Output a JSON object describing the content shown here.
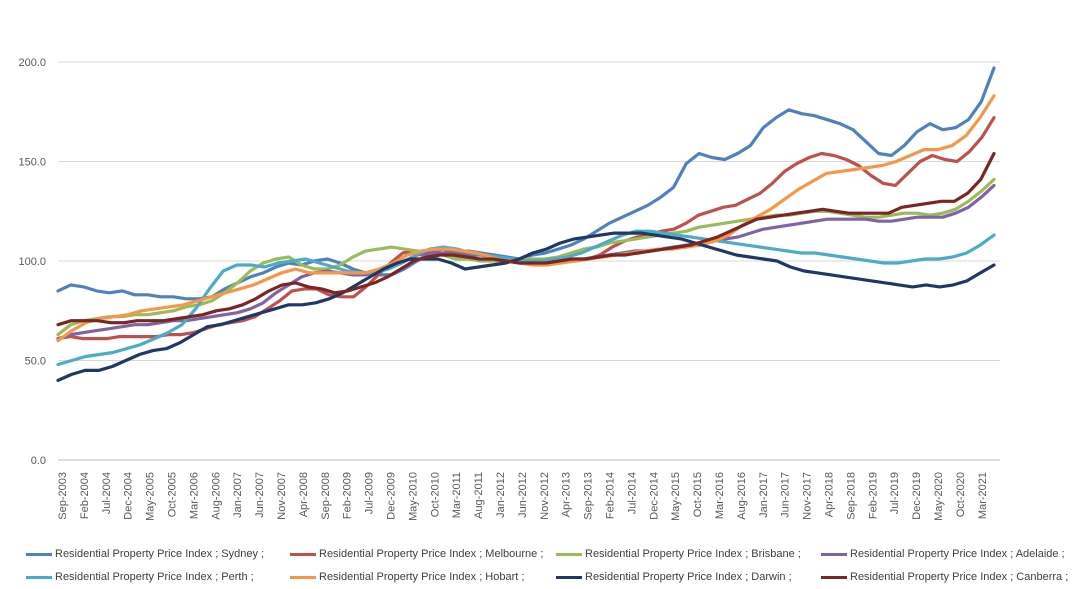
{
  "chart_data": {
    "type": "line",
    "title": "",
    "xlabel": "",
    "ylabel": "",
    "ylim": [
      0,
      200
    ],
    "yticks": [
      "0.0",
      "50.0",
      "100.0",
      "150.0",
      "200.0"
    ],
    "grid": "horizontal",
    "legend": "bottom",
    "x_tick_labels": [
      "Sep-2003",
      "Feb-2004",
      "Jul-2004",
      "Dec-2004",
      "May-2005",
      "Oct-2005",
      "Mar-2006",
      "Aug-2006",
      "Jan-2007",
      "Jun-2007",
      "Nov-2007",
      "Apr-2008",
      "Sep-2008",
      "Feb-2009",
      "Jul-2009",
      "Dec-2009",
      "May-2010",
      "Oct-2010",
      "Mar-2011",
      "Aug-2011",
      "Jan-2012",
      "Jun-2012",
      "Nov-2012",
      "Apr-2013",
      "Sep-2013",
      "Feb-2014",
      "Jul-2014",
      "Dec-2014",
      "May-2015",
      "Oct-2015",
      "Mar-2016",
      "Aug-2016",
      "Jan-2017",
      "Jun-2017",
      "Nov-2017",
      "Apr-2018",
      "Sep-2018",
      "Feb-2019",
      "Jul-2019",
      "Dec-2019",
      "May-2020",
      "Oct-2020",
      "Mar-2021"
    ],
    "series": [
      {
        "name": "Residential Property Price Index ;  Sydney ;",
        "color": "#4f81bd",
        "values": [
          85,
          88,
          87,
          85,
          84,
          85,
          83,
          83,
          82,
          82,
          81,
          81,
          82,
          86,
          89,
          92,
          94,
          97,
          99,
          98,
          100,
          101,
          99,
          96,
          94,
          93,
          93,
          96,
          100,
          104,
          106,
          104,
          105,
          104,
          103,
          102,
          101,
          103,
          104,
          106,
          108,
          111,
          115,
          119,
          122,
          125,
          128,
          132,
          137,
          149,
          154,
          152,
          151,
          154,
          158,
          167,
          172,
          176,
          174,
          173,
          171,
          169,
          166,
          160,
          154,
          153,
          158,
          165,
          169,
          166,
          167,
          171,
          180,
          197
        ]
      },
      {
        "name": "Residential Property Price Index ;  Melbourne ;",
        "color": "#c0504d",
        "values": [
          61,
          62,
          61,
          61,
          61,
          62,
          62,
          62,
          62,
          63,
          63,
          64,
          66,
          68,
          69,
          70,
          72,
          76,
          80,
          85,
          86,
          86,
          83,
          82,
          82,
          87,
          93,
          99,
          104,
          105,
          104,
          104,
          103,
          102,
          101,
          100,
          101,
          100,
          99,
          99,
          100,
          100,
          100,
          101,
          103,
          107,
          110,
          112,
          113,
          115,
          116,
          119,
          123,
          125,
          127,
          128,
          131,
          134,
          139,
          145,
          149,
          152,
          154,
          153,
          151,
          148,
          143,
          139,
          138,
          144,
          150,
          153,
          151,
          150,
          155,
          162,
          172
        ]
      },
      {
        "name": "Residential Property Price Index ;  Brisbane ;",
        "color": "#9bbb59",
        "values": [
          63,
          68,
          70,
          71,
          72,
          72,
          73,
          73,
          74,
          75,
          77,
          78,
          80,
          84,
          89,
          95,
          99,
          101,
          102,
          98,
          96,
          96,
          98,
          102,
          105,
          106,
          107,
          106,
          105,
          104,
          103,
          101,
          101,
          100,
          100,
          100,
          101,
          101,
          101,
          102,
          104,
          106,
          107,
          109,
          110,
          111,
          112,
          113,
          114,
          115,
          117,
          118,
          119,
          120,
          121,
          122,
          123,
          123,
          124,
          125,
          125,
          124,
          123,
          122,
          122,
          123,
          124,
          124,
          123,
          124,
          126,
          130,
          135,
          141
        ]
      },
      {
        "name": "Residential Property Price Index ;  Adelaide ;",
        "color": "#8064a2",
        "values": [
          61,
          63,
          64,
          65,
          66,
          67,
          68,
          68,
          69,
          70,
          70,
          71,
          72,
          73,
          74,
          76,
          79,
          84,
          88,
          92,
          94,
          95,
          94,
          93,
          93,
          95,
          97,
          100,
          103,
          104,
          104,
          104,
          103,
          103,
          102,
          101,
          100,
          100,
          100,
          100,
          101,
          101,
          102,
          103,
          104,
          105,
          105,
          106,
          107,
          108,
          109,
          110,
          111,
          112,
          114,
          116,
          117,
          118,
          119,
          120,
          121,
          121,
          121,
          121,
          120,
          120,
          121,
          122,
          122,
          122,
          124,
          127,
          132,
          138
        ]
      },
      {
        "name": "Residential Property Price Index ;  Perth ;",
        "color": "#4bacc6",
        "values": [
          48,
          50,
          52,
          53,
          54,
          56,
          58,
          61,
          64,
          68,
          76,
          86,
          95,
          98,
          98,
          97,
          99,
          100,
          101,
          99,
          97,
          95,
          94,
          94,
          96,
          99,
          103,
          106,
          107,
          106,
          104,
          103,
          102,
          101,
          100,
          100,
          101,
          102,
          104,
          107,
          110,
          113,
          115,
          115,
          114,
          113,
          112,
          111,
          110,
          109,
          108,
          107,
          106,
          105,
          104,
          104,
          103,
          102,
          101,
          100,
          99,
          99,
          100,
          101,
          101,
          102,
          104,
          108,
          113
        ]
      },
      {
        "name": "Residential Property Price Index ;  Hobart ;",
        "color": "#f79646",
        "values": [
          60,
          65,
          69,
          71,
          72,
          73,
          75,
          76,
          77,
          78,
          80,
          82,
          84,
          86,
          88,
          91,
          94,
          96,
          94,
          94,
          94,
          94,
          94,
          96,
          99,
          103,
          105,
          106,
          106,
          105,
          104,
          102,
          100,
          99,
          98,
          98,
          99,
          100,
          101,
          102,
          103,
          104,
          105,
          106,
          106,
          107,
          108,
          110,
          113,
          118,
          122,
          126,
          131,
          136,
          140,
          144,
          145,
          146,
          147,
          148,
          150,
          153,
          156,
          156,
          158,
          163,
          172,
          183
        ]
      },
      {
        "name": "Residential Property Price Index ;  Darwin ;",
        "color": "#1f3864",
        "values": [
          40,
          43,
          45,
          45,
          47,
          50,
          53,
          55,
          56,
          59,
          63,
          67,
          68,
          70,
          72,
          74,
          76,
          78,
          78,
          79,
          81,
          84,
          88,
          92,
          96,
          99,
          101,
          101,
          101,
          99,
          96,
          97,
          98,
          99,
          101,
          104,
          106,
          109,
          111,
          112,
          113,
          114,
          114,
          114,
          113,
          112,
          111,
          109,
          107,
          105,
          103,
          102,
          101,
          100,
          97,
          95,
          94,
          93,
          92,
          91,
          90,
          89,
          88,
          87,
          88,
          87,
          88,
          90,
          94,
          98
        ]
      },
      {
        "name": "Residential Property Price Index ;  Canberra ;",
        "color": "#7b2525",
        "values": [
          68,
          70,
          70,
          70,
          69,
          69,
          70,
          70,
          70,
          71,
          72,
          73,
          75,
          76,
          78,
          81,
          85,
          88,
          89,
          87,
          86,
          84,
          85,
          87,
          89,
          92,
          96,
          100,
          102,
          103,
          103,
          102,
          101,
          101,
          100,
          99,
          99,
          99,
          100,
          101,
          101,
          102,
          103,
          103,
          104,
          105,
          106,
          107,
          108,
          110,
          112,
          115,
          118,
          121,
          122,
          123,
          124,
          125,
          126,
          125,
          124,
          124,
          124,
          124,
          127,
          128,
          129,
          130,
          130,
          134,
          141,
          154
        ]
      }
    ]
  }
}
